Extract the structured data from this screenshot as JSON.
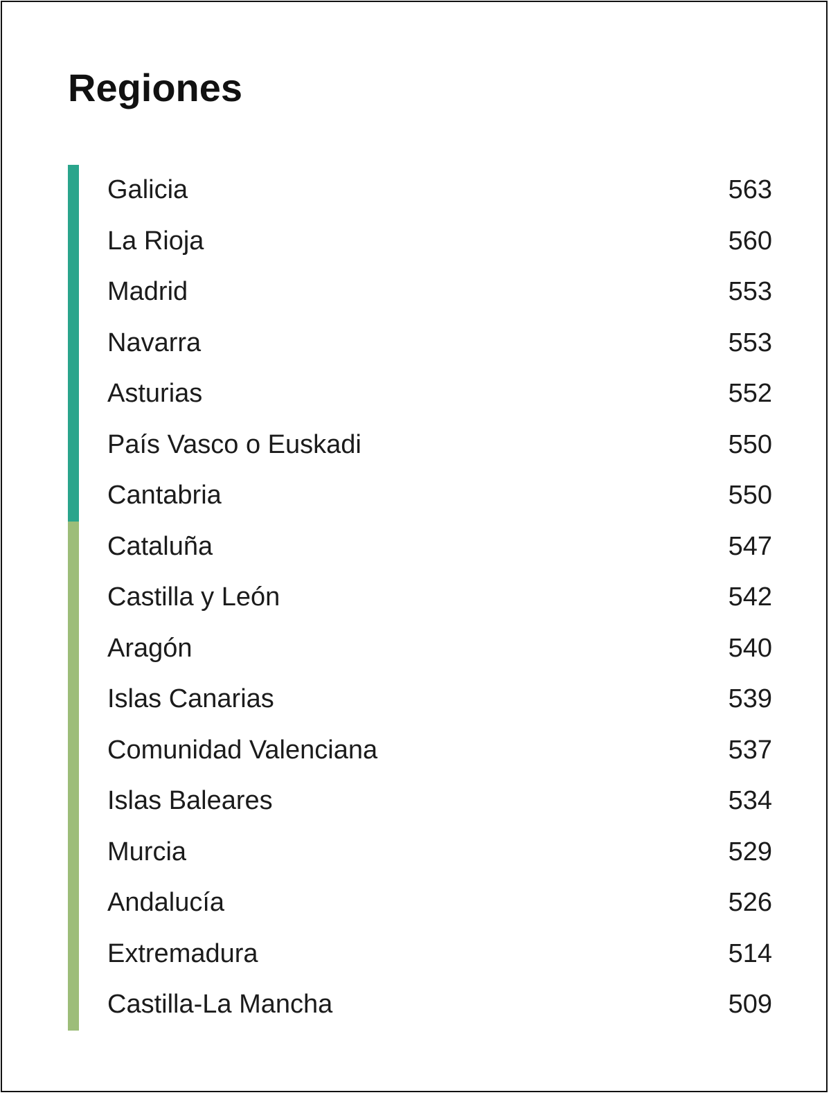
{
  "title": "Regiones",
  "colors": {
    "group_high": "#2aa58c",
    "group_low": "#9dbd79"
  },
  "chart_data": {
    "type": "table",
    "title": "Regiones",
    "columns": [
      "",
      ""
    ],
    "rows": [
      {
        "region": "Galicia",
        "value": 563,
        "group": "high"
      },
      {
        "region": "La Rioja",
        "value": 560,
        "group": "high"
      },
      {
        "region": "Madrid",
        "value": 553,
        "group": "high"
      },
      {
        "region": "Navarra",
        "value": 553,
        "group": "high"
      },
      {
        "region": "Asturias",
        "value": 552,
        "group": "high"
      },
      {
        "region": "País Vasco o Euskadi",
        "value": 550,
        "group": "high"
      },
      {
        "region": "Cantabria",
        "value": 550,
        "group": "high"
      },
      {
        "region": "Cataluña",
        "value": 547,
        "group": "low"
      },
      {
        "region": "Castilla y León",
        "value": 542,
        "group": "low"
      },
      {
        "region": "Aragón",
        "value": 540,
        "group": "low"
      },
      {
        "region": "Islas Canarias",
        "value": 539,
        "group": "low"
      },
      {
        "region": "Comunidad Valenciana",
        "value": 537,
        "group": "low"
      },
      {
        "region": "Islas Baleares",
        "value": 534,
        "group": "low"
      },
      {
        "region": "Murcia",
        "value": 529,
        "group": "low"
      },
      {
        "region": "Andalucía",
        "value": 526,
        "group": "low"
      },
      {
        "region": "Extremadura",
        "value": 514,
        "group": "low"
      },
      {
        "region": "Castilla-La Mancha",
        "value": 509,
        "group": "low"
      }
    ]
  }
}
